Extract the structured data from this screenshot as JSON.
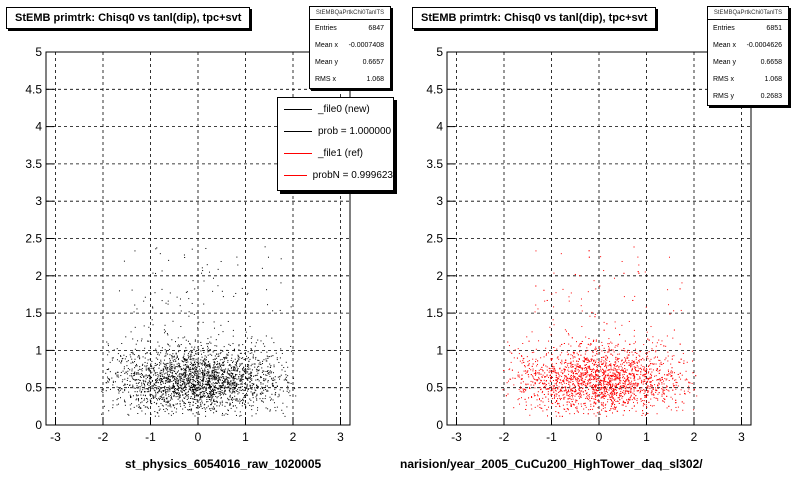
{
  "chart_data": [
    {
      "type": "scatter",
      "title": "StEMB primtrk: Chisq0 vs tanl(dip), tpc+svt",
      "xlabel": "st_physics_6054016_raw_1020005",
      "ylabel": "",
      "xlim": [
        -3.2,
        3.2
      ],
      "ylim": [
        0,
        5
      ],
      "xticks": [
        "-3",
        "-2",
        "-1",
        "0",
        "1",
        "2",
        "3"
      ],
      "yticks": [
        "0",
        "0.5",
        "1",
        "1.5",
        "2",
        "2.5",
        "3",
        "3.5",
        "4",
        "4.5",
        "5"
      ],
      "grid": true,
      "marker_color": "#000000",
      "stats": {
        "name": "StEMBQaPrtkChi0TanlTS",
        "rows": [
          {
            "label": "Entries",
            "value": "6847"
          },
          {
            "label": "Mean x",
            "value": "-0.0007408"
          },
          {
            "label": "Mean y",
            "value": "0.6657"
          },
          {
            "label": "RMS x",
            "value": "1.068"
          }
        ]
      },
      "legend": {
        "placement": "top-right",
        "entries": [
          {
            "label": "_file0 (new)",
            "color": "#000000"
          },
          {
            "label": "prob = 1.000000",
            "color": "#000000"
          },
          {
            "label": "_file1 (ref)",
            "color": "#ff0000"
          },
          {
            "label": "probN = 0.999623",
            "color": "#ff0000"
          }
        ]
      }
    },
    {
      "type": "scatter",
      "title": "StEMB primtrk: Chisq0 vs tanl(dip), tpc+svt",
      "xlabel": "narision/year_2005_CuCu200_HighTower_daq_sl302/",
      "ylabel": "",
      "xlim": [
        -3.2,
        3.2
      ],
      "ylim": [
        0,
        5
      ],
      "xticks": [
        "-3",
        "-2",
        "-1",
        "0",
        "1",
        "2",
        "3"
      ],
      "yticks": [
        "0",
        "0.5",
        "1",
        "1.5",
        "2",
        "2.5",
        "3",
        "3.5",
        "4",
        "4.5",
        "5"
      ],
      "grid": true,
      "marker_color": "#ff0000",
      "stats": {
        "name": "StEMBQaPrtkChi0TanlTS",
        "rows": [
          {
            "label": "Entries",
            "value": "6851"
          },
          {
            "label": "Mean x",
            "value": "-0.0004626"
          },
          {
            "label": "Mean y",
            "value": "0.6658"
          },
          {
            "label": "RMS x",
            "value": "1.068"
          },
          {
            "label": "RMS y",
            "value": "0.2683"
          }
        ]
      }
    }
  ]
}
